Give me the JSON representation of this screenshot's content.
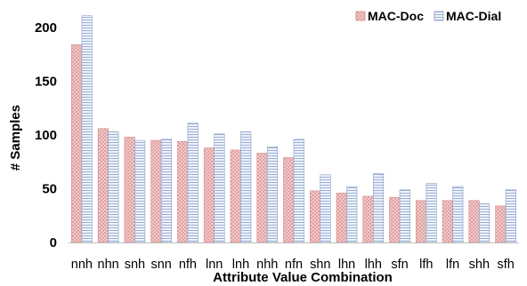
{
  "chart_data": {
    "type": "bar",
    "title": "",
    "xlabel": "Attribute Value Combination",
    "ylabel": "# Samples",
    "ylim": [
      0,
      200
    ],
    "y_ticks": [
      0,
      50,
      100,
      150,
      200
    ],
    "grid": false,
    "legend_position": "top-right",
    "categories": [
      "nnh",
      "nhn",
      "snh",
      "snn",
      "nfh",
      "lnn",
      "lnh",
      "nhh",
      "nfn",
      "shn",
      "lhn",
      "lhh",
      "sfn",
      "lfh",
      "lfn",
      "shh",
      "sfh"
    ],
    "series": [
      {
        "name": "MAC-Doc",
        "color": "#e8a0a0",
        "pattern": "crosshatch",
        "values": [
          184,
          106,
          98,
          95,
          94,
          88,
          86,
          83,
          79,
          48,
          46,
          43,
          42,
          39,
          39,
          39,
          34
        ]
      },
      {
        "name": "MAC-Dial",
        "color": "#9db3d6",
        "pattern": "horizontal-lines",
        "values": [
          211,
          103,
          95,
          96,
          111,
          101,
          103,
          89,
          96,
          63,
          52,
          64,
          49,
          55,
          52,
          36,
          49
        ]
      }
    ]
  }
}
